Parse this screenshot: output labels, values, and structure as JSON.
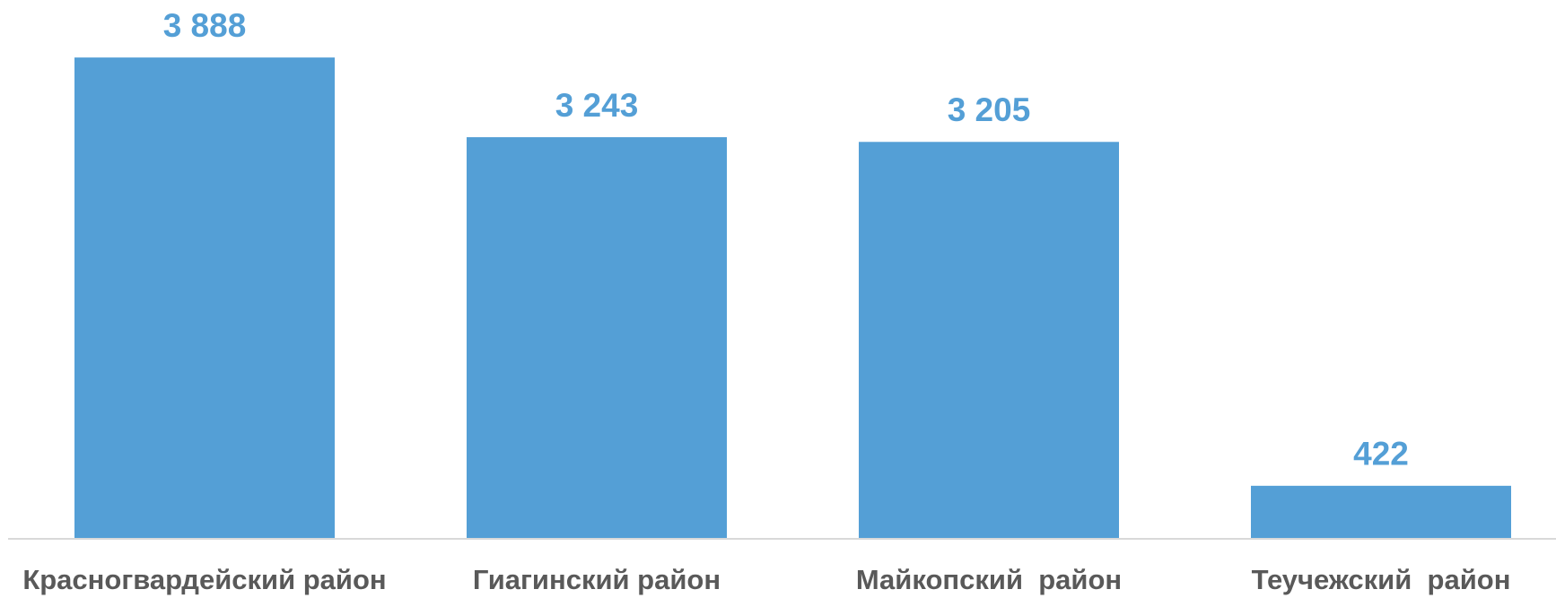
{
  "chart_data": {
    "type": "bar",
    "categories": [
      "Красногвардейский район",
      "Гиагинский район",
      "Майкопский  район",
      "Теучежский  район"
    ],
    "values": [
      3888,
      3243,
      3205,
      422
    ],
    "value_labels": [
      "3 888",
      "3 243",
      "3 205",
      "422"
    ],
    "color": "#549fd6",
    "ylim": [
      0,
      4000
    ]
  }
}
